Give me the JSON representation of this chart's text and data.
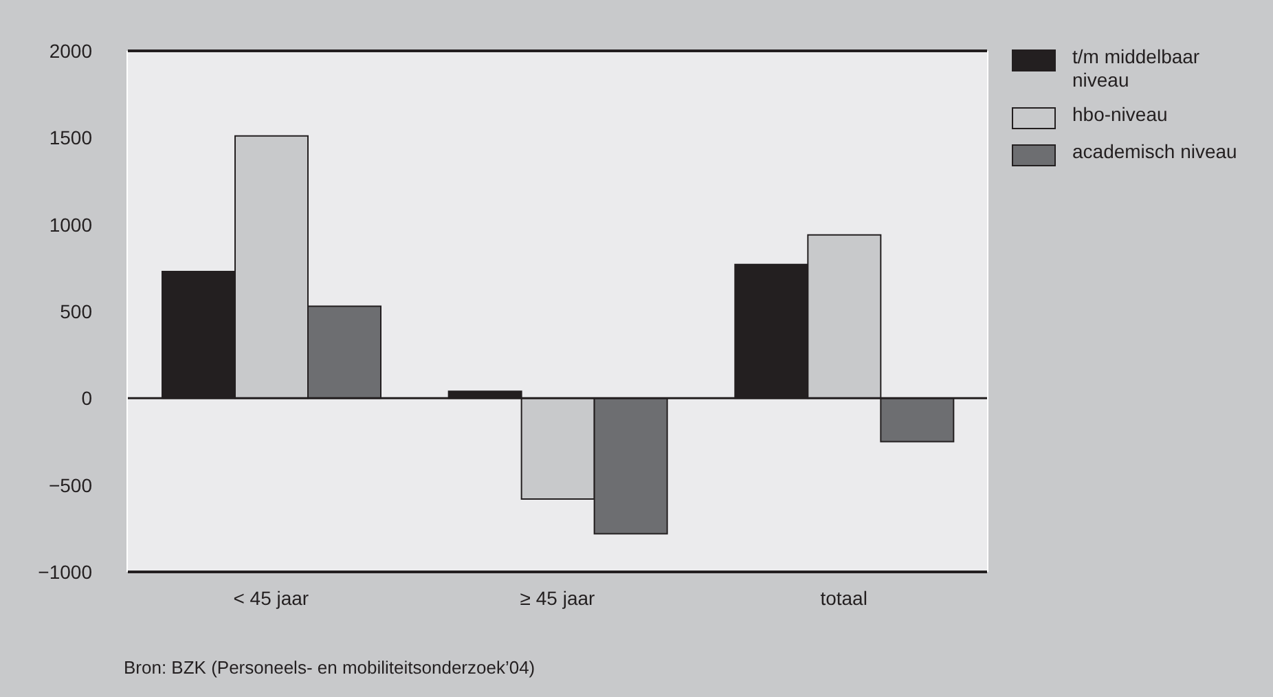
{
  "chart_data": {
    "type": "bar",
    "categories": [
      "< 45 jaar",
      "≥ 45 jaar",
      "totaal"
    ],
    "series": [
      {
        "name": "t/m middelbaar niveau",
        "color": "#231f20",
        "values": [
          730,
          40,
          770
        ]
      },
      {
        "name": "hbo-niveau",
        "color": "#c8c9cb",
        "values": [
          1510,
          -580,
          940
        ]
      },
      {
        "name": "academisch niveau",
        "color": "#6d6e71",
        "values": [
          530,
          -780,
          -250
        ]
      }
    ],
    "ylim": [
      -1000,
      2000
    ],
    "yticks": [
      -1000,
      -500,
      0,
      500,
      1000,
      1500,
      2000
    ],
    "grid": true,
    "legend": "top right",
    "annotations": [
      "Bron: BZK (Personeels- en mobiliteitsonderzoek’04)"
    ]
  }
}
